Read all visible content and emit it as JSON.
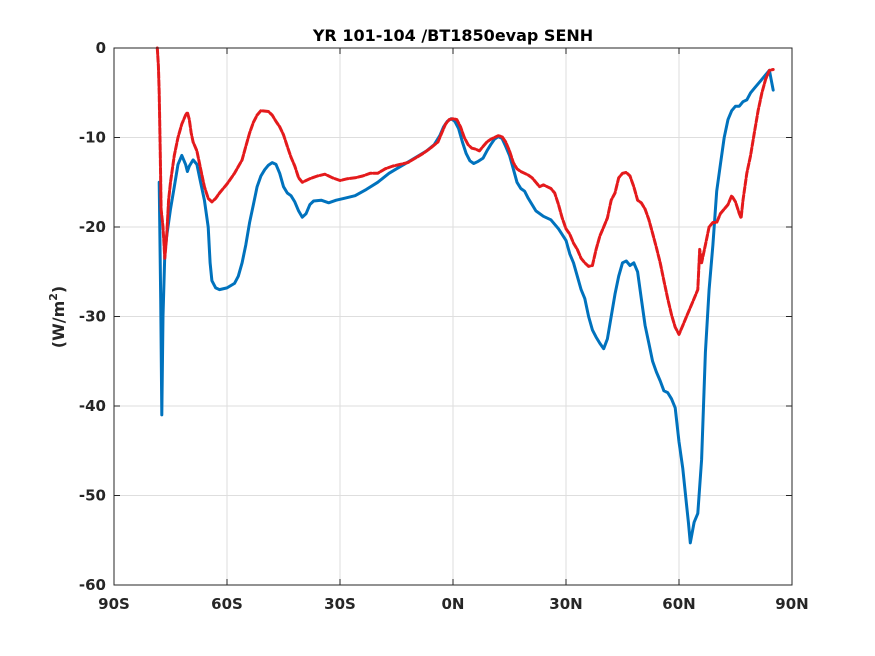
{
  "chart_data": {
    "type": "line",
    "title": "YR 101-104 /BT1850evap SENH",
    "ylabel_main": "(W/m",
    "ylabel_sup": "2",
    "ylabel_close": ")",
    "xlim": [
      -90,
      90
    ],
    "ylim": [
      -60,
      0
    ],
    "grid": true,
    "xticks": [
      -90,
      -60,
      -30,
      0,
      30,
      60,
      90
    ],
    "xtick_labels": [
      "90S",
      "60S",
      "30S",
      "0N",
      "30N",
      "60N",
      "90N"
    ],
    "yticks": [
      0,
      -10,
      -20,
      -30,
      -40,
      -50,
      -60
    ],
    "ytick_labels": [
      "0",
      "-10",
      "-20",
      "-30",
      "-40",
      "-50",
      "-60"
    ],
    "series": [
      {
        "color": "#0072bd",
        "style": "solid",
        "points": [
          [
            -78,
            -15
          ],
          [
            -77.6,
            -28
          ],
          [
            -77.3,
            -41
          ],
          [
            -77,
            -30
          ],
          [
            -76.5,
            -23
          ],
          [
            -76,
            -21
          ],
          [
            -75,
            -18
          ],
          [
            -74,
            -15.5
          ],
          [
            -73,
            -13
          ],
          [
            -72,
            -12
          ],
          [
            -71,
            -13
          ],
          [
            -70.5,
            -13.8
          ],
          [
            -70,
            -13.2
          ],
          [
            -69,
            -12.5
          ],
          [
            -68,
            -13
          ],
          [
            -67,
            -15
          ],
          [
            -66,
            -17
          ],
          [
            -65,
            -20
          ],
          [
            -64.5,
            -24
          ],
          [
            -64,
            -26
          ],
          [
            -63,
            -26.8
          ],
          [
            -62,
            -27
          ],
          [
            -60,
            -26.8
          ],
          [
            -58,
            -26.3
          ],
          [
            -57,
            -25.5
          ],
          [
            -56,
            -24
          ],
          [
            -55,
            -22
          ],
          [
            -54,
            -19.5
          ],
          [
            -53,
            -17.5
          ],
          [
            -52,
            -15.5
          ],
          [
            -51,
            -14.3
          ],
          [
            -50,
            -13.6
          ],
          [
            -49,
            -13.1
          ],
          [
            -48,
            -12.8
          ],
          [
            -47,
            -13
          ],
          [
            -46,
            -14
          ],
          [
            -45,
            -15.5
          ],
          [
            -44,
            -16.2
          ],
          [
            -43,
            -16.5
          ],
          [
            -42,
            -17.2
          ],
          [
            -41,
            -18.2
          ],
          [
            -40,
            -18.9
          ],
          [
            -39,
            -18.5
          ],
          [
            -38,
            -17.5
          ],
          [
            -37,
            -17.1
          ],
          [
            -35,
            -17
          ],
          [
            -33,
            -17.3
          ],
          [
            -31,
            -17
          ],
          [
            -29,
            -16.8
          ],
          [
            -26,
            -16.5
          ],
          [
            -23,
            -15.8
          ],
          [
            -20,
            -15
          ],
          [
            -17,
            -14
          ],
          [
            -15,
            -13.5
          ],
          [
            -13,
            -13
          ],
          [
            -11,
            -12.5
          ],
          [
            -9,
            -12
          ],
          [
            -7,
            -11.5
          ],
          [
            -5,
            -10.8
          ],
          [
            -3.5,
            -9.8
          ],
          [
            -2.5,
            -8.8
          ],
          [
            -1.5,
            -8.2
          ],
          [
            -0.5,
            -7.9
          ],
          [
            0.5,
            -8.2
          ],
          [
            1.5,
            -9
          ],
          [
            2.5,
            -10.5
          ],
          [
            3.5,
            -11.8
          ],
          [
            4.5,
            -12.6
          ],
          [
            5.5,
            -12.9
          ],
          [
            6.5,
            -12.7
          ],
          [
            8,
            -12.3
          ],
          [
            9,
            -11.5
          ],
          [
            10,
            -10.8
          ],
          [
            11,
            -10.2
          ],
          [
            12,
            -9.9
          ],
          [
            13,
            -10.1
          ],
          [
            14,
            -11
          ],
          [
            15,
            -12
          ],
          [
            16,
            -13.5
          ],
          [
            17,
            -15
          ],
          [
            18,
            -15.7
          ],
          [
            19,
            -16
          ],
          [
            20,
            -16.8
          ],
          [
            21,
            -17.5
          ],
          [
            22,
            -18.2
          ],
          [
            24,
            -18.8
          ],
          [
            26,
            -19.2
          ],
          [
            28,
            -20.2
          ],
          [
            30,
            -21.5
          ],
          [
            31,
            -23
          ],
          [
            32,
            -24
          ],
          [
            33,
            -25.5
          ],
          [
            34,
            -27
          ],
          [
            35,
            -28
          ],
          [
            36,
            -30
          ],
          [
            37,
            -31.5
          ],
          [
            38,
            -32.3
          ],
          [
            39,
            -33
          ],
          [
            40,
            -33.6
          ],
          [
            41,
            -32.5
          ],
          [
            42,
            -30
          ],
          [
            43,
            -27.5
          ],
          [
            44,
            -25.5
          ],
          [
            45,
            -24
          ],
          [
            46,
            -23.8
          ],
          [
            47,
            -24.3
          ],
          [
            48,
            -24
          ],
          [
            49,
            -25
          ],
          [
            50,
            -28
          ],
          [
            51,
            -31
          ],
          [
            52,
            -33
          ],
          [
            53,
            -35
          ],
          [
            54,
            -36.2
          ],
          [
            55,
            -37.2
          ],
          [
            56,
            -38.3
          ],
          [
            57,
            -38.5
          ],
          [
            58,
            -39.2
          ],
          [
            59,
            -40.2
          ],
          [
            60,
            -44
          ],
          [
            61,
            -47
          ],
          [
            62,
            -51
          ],
          [
            62.5,
            -53
          ],
          [
            63,
            -55.3
          ],
          [
            64,
            -53
          ],
          [
            65,
            -52
          ],
          [
            66,
            -46
          ],
          [
            67,
            -34
          ],
          [
            68,
            -27
          ],
          [
            69,
            -22
          ],
          [
            70,
            -16
          ],
          [
            71,
            -13
          ],
          [
            72,
            -10
          ],
          [
            73,
            -8
          ],
          [
            74,
            -7
          ],
          [
            75,
            -6.5
          ],
          [
            76,
            -6.5
          ],
          [
            77,
            -6
          ],
          [
            78,
            -5.8
          ],
          [
            79,
            -5
          ],
          [
            80,
            -4.5
          ],
          [
            81,
            -4
          ],
          [
            82,
            -3.5
          ],
          [
            83,
            -3
          ],
          [
            84,
            -2.5
          ],
          [
            85,
            -4.7
          ]
        ]
      },
      {
        "color": "#e41a1c",
        "style": "dashed",
        "points": [
          [
            -78.5,
            0
          ],
          [
            -78.2,
            -2
          ],
          [
            -78,
            -5
          ],
          [
            -77.7,
            -12
          ],
          [
            -77.5,
            -18
          ],
          [
            -77,
            -20
          ],
          [
            -76.5,
            -23.5
          ],
          [
            -76,
            -21
          ],
          [
            -75.5,
            -17
          ],
          [
            -75,
            -15
          ],
          [
            -74,
            -12
          ],
          [
            -73,
            -10
          ],
          [
            -72,
            -8.5
          ],
          [
            -71,
            -7.5
          ],
          [
            -70.5,
            -7.2
          ],
          [
            -70,
            -8
          ],
          [
            -69.5,
            -9.5
          ],
          [
            -69,
            -10.5
          ],
          [
            -68,
            -11.5
          ],
          [
            -67,
            -13.5
          ],
          [
            -66,
            -15.5
          ],
          [
            -65,
            -16.8
          ],
          [
            -64,
            -17.2
          ],
          [
            -63,
            -16.8
          ],
          [
            -62,
            -16.2
          ],
          [
            -60,
            -15.2
          ],
          [
            -58,
            -14
          ],
          [
            -56,
            -12.5
          ],
          [
            -55,
            -11
          ],
          [
            -54,
            -9.5
          ],
          [
            -53,
            -8.3
          ],
          [
            -52,
            -7.5
          ],
          [
            -51,
            -7
          ],
          [
            -49,
            -7.1
          ],
          [
            -48,
            -7.5
          ],
          [
            -47,
            -8.2
          ],
          [
            -46,
            -8.8
          ],
          [
            -45,
            -9.7
          ],
          [
            -44,
            -11
          ],
          [
            -43,
            -12.2
          ],
          [
            -42,
            -13.2
          ],
          [
            -41,
            -14.5
          ],
          [
            -40,
            -15
          ],
          [
            -39,
            -14.8
          ],
          [
            -38,
            -14.6
          ],
          [
            -36,
            -14.3
          ],
          [
            -34,
            -14.1
          ],
          [
            -32,
            -14.5
          ],
          [
            -30,
            -14.8
          ],
          [
            -28,
            -14.6
          ],
          [
            -26,
            -14.5
          ],
          [
            -24,
            -14.3
          ],
          [
            -22,
            -14
          ],
          [
            -20,
            -14
          ],
          [
            -18,
            -13.5
          ],
          [
            -16,
            -13.2
          ],
          [
            -14,
            -13
          ],
          [
            -12,
            -12.8
          ],
          [
            -10,
            -12.3
          ],
          [
            -8,
            -11.8
          ],
          [
            -6,
            -11.2
          ],
          [
            -4,
            -10.5
          ],
          [
            -3,
            -9.5
          ],
          [
            -2,
            -8.5
          ],
          [
            -1,
            -8
          ],
          [
            0,
            -7.9
          ],
          [
            1,
            -8
          ],
          [
            2,
            -8.8
          ],
          [
            3,
            -10
          ],
          [
            4,
            -10.8
          ],
          [
            5,
            -11.2
          ],
          [
            6,
            -11.3
          ],
          [
            7,
            -11.5
          ],
          [
            8,
            -11
          ],
          [
            9,
            -10.5
          ],
          [
            10,
            -10.2
          ],
          [
            11,
            -10
          ],
          [
            12,
            -9.8
          ],
          [
            13,
            -9.9
          ],
          [
            14,
            -10.5
          ],
          [
            15,
            -11.5
          ],
          [
            16,
            -12.8
          ],
          [
            17,
            -13.5
          ],
          [
            18,
            -13.8
          ],
          [
            19,
            -14
          ],
          [
            20,
            -14.2
          ],
          [
            21,
            -14.5
          ],
          [
            22,
            -15
          ],
          [
            23,
            -15.5
          ],
          [
            24,
            -15.3
          ],
          [
            25,
            -15.5
          ],
          [
            26,
            -15.7
          ],
          [
            27,
            -16.2
          ],
          [
            28,
            -17.5
          ],
          [
            29,
            -19
          ],
          [
            30,
            -20.2
          ],
          [
            31,
            -20.8
          ],
          [
            32,
            -21.8
          ],
          [
            33,
            -22.5
          ],
          [
            34,
            -23.5
          ],
          [
            35,
            -24
          ],
          [
            36,
            -24.4
          ],
          [
            37,
            -24.3
          ],
          [
            38,
            -22.5
          ],
          [
            39,
            -21
          ],
          [
            40,
            -20
          ],
          [
            41,
            -19
          ],
          [
            42,
            -17
          ],
          [
            43,
            -16.2
          ],
          [
            44,
            -14.5
          ],
          [
            45,
            -14
          ],
          [
            46,
            -13.9
          ],
          [
            47,
            -14.3
          ],
          [
            48,
            -15.5
          ],
          [
            49,
            -17
          ],
          [
            50,
            -17.3
          ],
          [
            51,
            -18
          ],
          [
            52,
            -19.2
          ],
          [
            53,
            -20.7
          ],
          [
            54,
            -22.3
          ],
          [
            55,
            -24
          ],
          [
            56,
            -26
          ],
          [
            57,
            -28
          ],
          [
            58,
            -29.8
          ],
          [
            59,
            -31.2
          ],
          [
            60,
            -32
          ],
          [
            61,
            -31
          ],
          [
            62,
            -30
          ],
          [
            63,
            -29
          ],
          [
            64,
            -28
          ],
          [
            65,
            -27
          ],
          [
            65.5,
            -22.5
          ],
          [
            66,
            -24
          ],
          [
            67,
            -22
          ],
          [
            68,
            -20
          ],
          [
            69,
            -19.5
          ],
          [
            70,
            -19.5
          ],
          [
            71,
            -18.5
          ],
          [
            72,
            -18
          ],
          [
            73,
            -17.5
          ],
          [
            74,
            -16.5
          ],
          [
            75,
            -17.2
          ],
          [
            76,
            -18.5
          ],
          [
            76.5,
            -19
          ],
          [
            77,
            -17
          ],
          [
            78,
            -14
          ],
          [
            79,
            -12
          ],
          [
            80,
            -9.5
          ],
          [
            81,
            -7
          ],
          [
            82,
            -5
          ],
          [
            83,
            -3.5
          ],
          [
            84,
            -2.5
          ],
          [
            85,
            -2.4
          ]
        ]
      }
    ]
  }
}
